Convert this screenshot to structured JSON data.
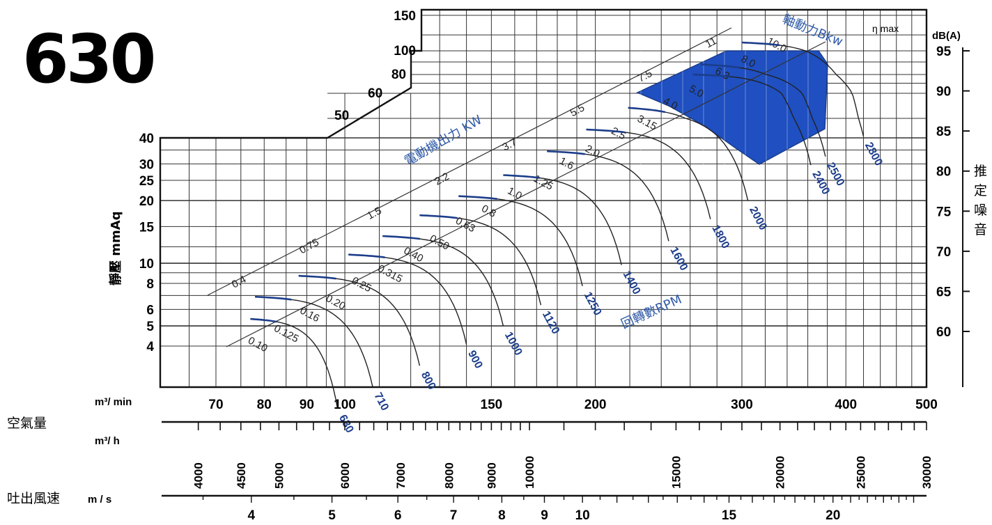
{
  "model": "630",
  "colors": {
    "curve": "#1c3d8a",
    "region": "#1f4fc0",
    "ink": "#111111"
  },
  "chart_data": {
    "type": "line",
    "title": "630",
    "y_axis": {
      "unit": "mmAq",
      "label": "靜壓 mmAq",
      "scale": "log",
      "ticks": [
        4,
        5,
        6,
        8,
        10,
        15,
        20,
        25,
        30,
        40
      ],
      "upper_ticks": [
        50,
        60,
        80,
        100,
        150
      ]
    },
    "x_axis_airflow_min": {
      "unit": "m³/ min",
      "scale": "log",
      "ticks": [
        70,
        80,
        90,
        100,
        150,
        200,
        300,
        400,
        500
      ]
    },
    "x_axis_airflow_hour": {
      "unit": "m³/ h",
      "ticks": [
        4000,
        4500,
        5000,
        6000,
        7000,
        8000,
        9000,
        10000,
        15000,
        20000,
        25000,
        30000
      ]
    },
    "x_axis_velocity": {
      "unit": "m / s",
      "ticks": [
        4,
        5,
        6,
        7,
        8,
        9,
        10,
        15,
        20
      ]
    },
    "noise_axis": {
      "unit": "dB(A)",
      "label": "推定噪音",
      "ticks": [
        60,
        65,
        70,
        75,
        80,
        85,
        90,
        95
      ]
    },
    "row_labels": {
      "airflow": "空氣量",
      "velocity": "吐出風速"
    },
    "rpm_label": "回轉數RPM",
    "motor_label": "電動機出力 KW",
    "shaft_label": "軸動力Bkw",
    "eta_label": "η max",
    "motor_kw": [
      "0.4",
      "0.75",
      "1.5",
      "2.2",
      "3.7",
      "5.5",
      "7.5",
      "11"
    ],
    "series": [
      {
        "rpm": "630",
        "h": 5.4,
        "qs": 77,
        "qe": 98
      },
      {
        "rpm": "710",
        "h": 6.9,
        "qs": 78,
        "qe": 108
      },
      {
        "rpm": "800",
        "h": 8.7,
        "qs": 88,
        "qe": 123
      },
      {
        "rpm": "900",
        "h": 11.0,
        "qs": 101,
        "qe": 140
      },
      {
        "rpm": "1000",
        "h": 13.5,
        "qs": 111,
        "qe": 155
      },
      {
        "rpm": "1120",
        "h": 17.0,
        "qs": 123,
        "qe": 172
      },
      {
        "rpm": "1250",
        "h": 21.0,
        "qs": 137,
        "qe": 193
      },
      {
        "rpm": "1400",
        "h": 26.5,
        "qs": 155,
        "qe": 215
      },
      {
        "rpm": "1600",
        "h": 34.5,
        "qs": 175,
        "qe": 245
      },
      {
        "rpm": "1800",
        "h": 44.0,
        "qs": 195,
        "qe": 275
      },
      {
        "rpm": "2000",
        "h": 54.0,
        "qs": 219,
        "qe": 305
      },
      {
        "rpm": "2400",
        "h": 80.0,
        "qs": 262,
        "qe": 363
      },
      {
        "rpm": "2500",
        "h": 88.0,
        "qs": 268,
        "qe": 378
      },
      {
        "rpm": "2800",
        "h": 110.0,
        "qs": 300,
        "qe": 420
      }
    ],
    "shaft_kw_labels": [
      "0.10",
      "0.125",
      "0.16",
      "0.20",
      "0.25",
      "0.315",
      "0.40",
      "0.50",
      "0.63",
      "0.8",
      "1.0",
      "1.25",
      "1.6",
      "2.0",
      "2.5",
      "3.15",
      "4.0",
      "5.0",
      "6.3",
      "8.0",
      "10.0"
    ]
  }
}
